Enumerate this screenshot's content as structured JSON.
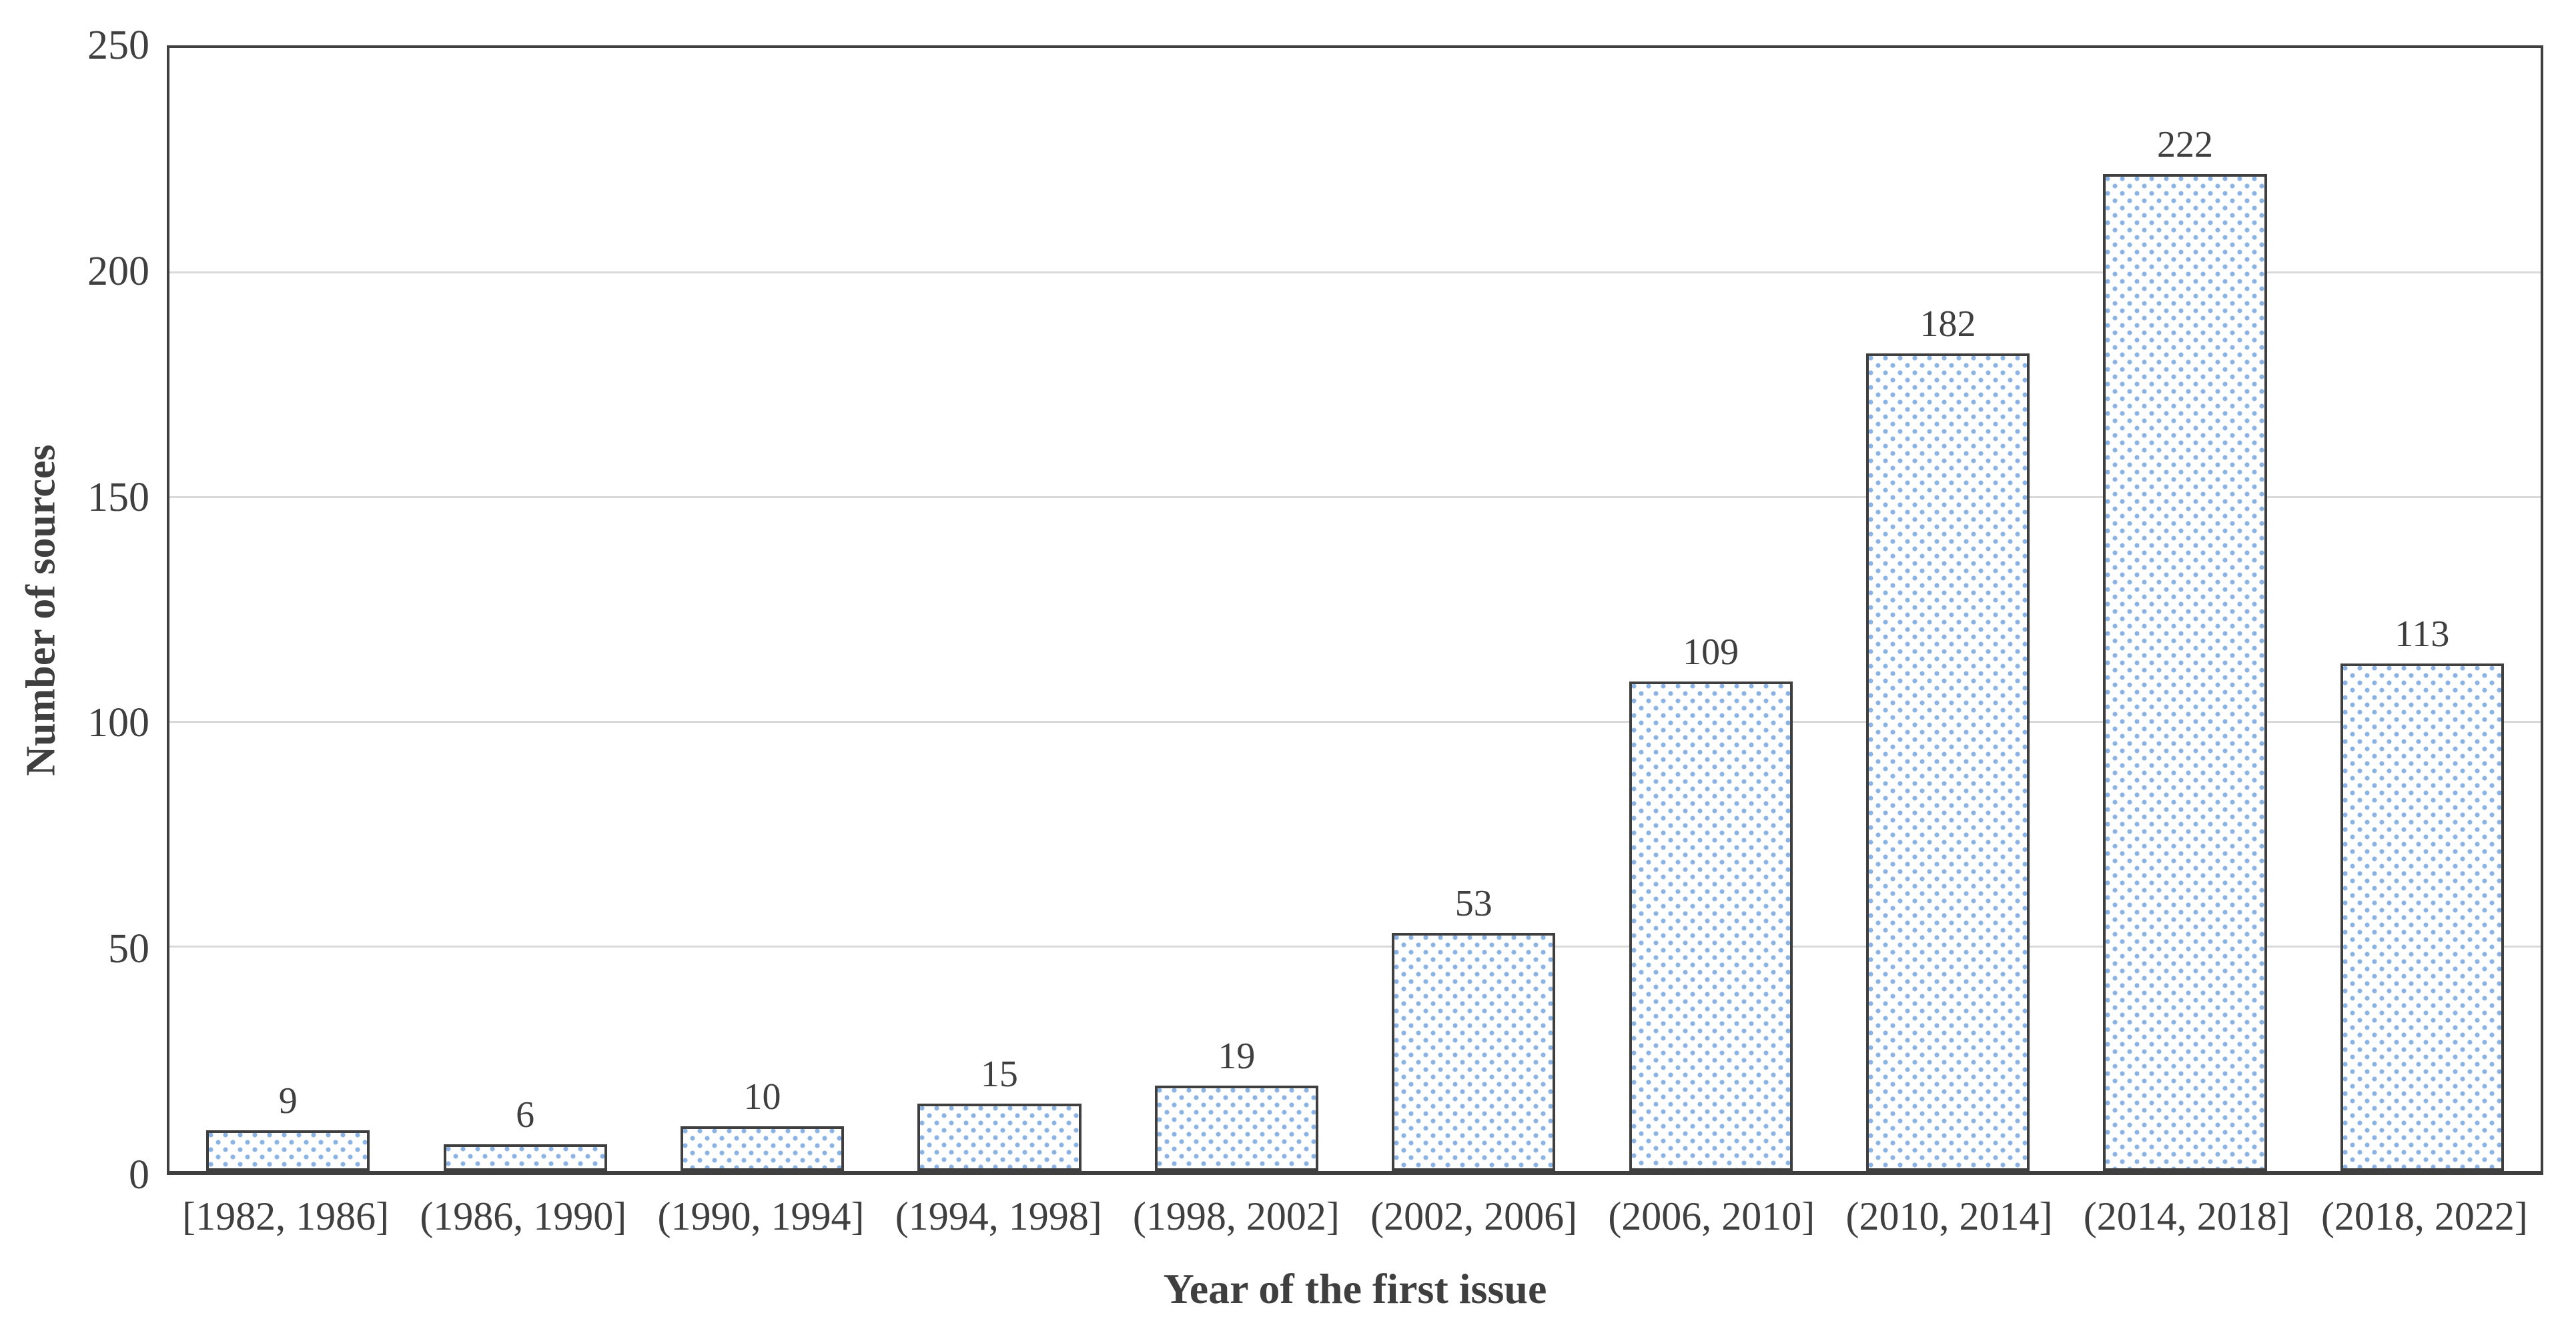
{
  "chart_data": {
    "type": "bar",
    "title": "",
    "categories": [
      "[1982, 1986]",
      "(1986, 1990]",
      "(1990, 1994]",
      "(1994, 1998]",
      "(1998, 2002]",
      "(2002, 2006]",
      "(2006, 2010]",
      "(2010, 2014]",
      "(2014, 2018]",
      "(2018, 2022]"
    ],
    "values": [
      9,
      6,
      10,
      15,
      19,
      53,
      109,
      182,
      222,
      113
    ],
    "xlabel": "Year of the first issue",
    "ylabel": "Number of sources",
    "ylim": [
      0,
      250
    ],
    "yticks": [
      0,
      50,
      100,
      150,
      200,
      250
    ],
    "grid": "horizontal-light-gray-behind-bars",
    "legend": "none",
    "bar_style": "white fill with staggered light-blue dot pattern, dark gray outline",
    "colors": {
      "background": "#ffffff",
      "text": "#3f3f3f",
      "axis_border": "#3f3f3f",
      "gridline": "#d9d9d9",
      "pattern_dot": "#8ab3e3"
    }
  }
}
